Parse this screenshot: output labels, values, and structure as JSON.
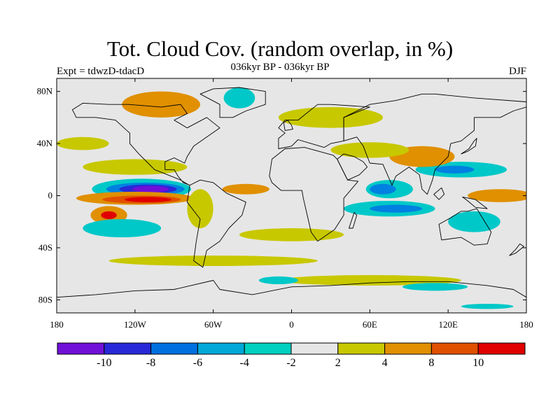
{
  "header": {
    "title": "Tot. Cloud Cov. (random overlap, in %)",
    "subtitle": "036kyr BP - 036kyr BP",
    "experiment": "Expt = tdwzD-tdacD",
    "season": "DJF"
  },
  "map": {
    "lon_range": [
      -180,
      180
    ],
    "lat_range": [
      -90,
      90
    ],
    "background_color": "#e6e6e6",
    "lat_ticks": [
      {
        "lat": 80,
        "label": "80N"
      },
      {
        "lat": 40,
        "label": "40N"
      },
      {
        "lat": 0,
        "label": "0"
      },
      {
        "lat": -40,
        "label": "40S"
      },
      {
        "lat": -80,
        "label": "80S"
      }
    ],
    "lon_ticks": [
      {
        "lon": -180,
        "label": "180"
      },
      {
        "lon": -120,
        "label": "120W"
      },
      {
        "lon": -60,
        "label": "60W"
      },
      {
        "lon": 0,
        "label": "0"
      },
      {
        "lon": 60,
        "label": "60E"
      },
      {
        "lon": 120,
        "label": "120E"
      },
      {
        "lon": 180,
        "label": "180"
      }
    ],
    "anomaly_patches": [
      {
        "lon": -115,
        "lat": 5,
        "rlon": 38,
        "rlat": 8,
        "color": "#00c8c8"
      },
      {
        "lon": -112,
        "lat": 5,
        "rlon": 30,
        "rlat": 5,
        "color": "#0080e0"
      },
      {
        "lon": -110,
        "lat": 5,
        "rlon": 22,
        "rlat": 3.5,
        "color": "#2828d8"
      },
      {
        "lon": -108,
        "lat": 5,
        "rlon": 14,
        "rlat": 2.5,
        "color": "#7010d8"
      },
      {
        "lon": -120,
        "lat": -2,
        "rlon": 45,
        "rlat": 5,
        "color": "#e09000"
      },
      {
        "lon": -115,
        "lat": -3,
        "rlon": 30,
        "rlat": 3,
        "color": "#e05000"
      },
      {
        "lon": -110,
        "lat": -3,
        "rlon": 18,
        "rlat": 2,
        "color": "#e00000"
      },
      {
        "lon": -140,
        "lat": -15,
        "rlon": 14,
        "rlat": 7,
        "color": "#e09000"
      },
      {
        "lon": -140,
        "lat": -15,
        "rlon": 6,
        "rlat": 3,
        "color": "#e00000"
      },
      {
        "lon": -130,
        "lat": -25,
        "rlon": 30,
        "rlat": 7,
        "color": "#00c8c8"
      },
      {
        "lon": -120,
        "lat": 22,
        "rlon": 40,
        "rlat": 6,
        "color": "#c8c800"
      },
      {
        "lon": -160,
        "lat": 40,
        "rlon": 20,
        "rlat": 5,
        "color": "#c8c800"
      },
      {
        "lon": -35,
        "lat": 5,
        "rlon": 18,
        "rlat": 4,
        "color": "#e09000"
      },
      {
        "lon": -70,
        "lat": -10,
        "rlon": 10,
        "rlat": 15,
        "color": "#c8c800"
      },
      {
        "lon": 75,
        "lat": 5,
        "rlon": 18,
        "rlat": 7,
        "color": "#00c8c8"
      },
      {
        "lon": 70,
        "lat": 5,
        "rlon": 10,
        "rlat": 4,
        "color": "#0080e0"
      },
      {
        "lon": 75,
        "lat": -10,
        "rlon": 35,
        "rlat": 6,
        "color": "#00c8c8"
      },
      {
        "lon": 80,
        "lat": -10,
        "rlon": 20,
        "rlat": 3,
        "color": "#0080e0"
      },
      {
        "lon": 130,
        "lat": 20,
        "rlon": 35,
        "rlat": 6,
        "color": "#00c8c8"
      },
      {
        "lon": 125,
        "lat": 20,
        "rlon": 15,
        "rlat": 3,
        "color": "#0080e0"
      },
      {
        "lon": 100,
        "lat": 30,
        "rlon": 25,
        "rlat": 8,
        "color": "#e09000"
      },
      {
        "lon": 160,
        "lat": 0,
        "rlon": 25,
        "rlat": 5,
        "color": "#e09000"
      },
      {
        "lon": 140,
        "lat": -20,
        "rlon": 20,
        "rlat": 8,
        "color": "#00c8c8"
      },
      {
        "lon": 60,
        "lat": 35,
        "rlon": 30,
        "rlat": 6,
        "color": "#c8c800"
      },
      {
        "lon": 30,
        "lat": 60,
        "rlon": 40,
        "rlat": 8,
        "color": "#c8c800"
      },
      {
        "lon": -100,
        "lat": 70,
        "rlon": 30,
        "rlat": 10,
        "color": "#e09000"
      },
      {
        "lon": -40,
        "lat": 75,
        "rlon": 12,
        "rlat": 8,
        "color": "#00c8c8"
      },
      {
        "lon": 0,
        "lat": -30,
        "rlon": 40,
        "rlat": 5,
        "color": "#c8c800"
      },
      {
        "lon": -60,
        "lat": -50,
        "rlon": 80,
        "rlat": 4,
        "color": "#c8c800"
      },
      {
        "lon": 60,
        "lat": -65,
        "rlon": 70,
        "rlat": 4,
        "color": "#c8c800"
      },
      {
        "lon": -10,
        "lat": -65,
        "rlon": 15,
        "rlat": 3,
        "color": "#00c8c8"
      },
      {
        "lon": 110,
        "lat": -70,
        "rlon": 25,
        "rlat": 3,
        "color": "#00c8c8"
      },
      {
        "lon": 150,
        "lat": -85,
        "rlon": 20,
        "rlat": 2,
        "color": "#00c8c8"
      }
    ],
    "continents": [
      {
        "name": "north-america",
        "points": [
          [
            -168,
            66
          ],
          [
            -160,
            71
          ],
          [
            -140,
            70
          ],
          [
            -125,
            70
          ],
          [
            -100,
            68
          ],
          [
            -85,
            70
          ],
          [
            -80,
            63
          ],
          [
            -90,
            58
          ],
          [
            -80,
            52
          ],
          [
            -65,
            60
          ],
          [
            -55,
            52
          ],
          [
            -65,
            45
          ],
          [
            -75,
            38
          ],
          [
            -80,
            30
          ],
          [
            -82,
            25
          ],
          [
            -90,
            29
          ],
          [
            -97,
            26
          ],
          [
            -97,
            20
          ],
          [
            -90,
            20
          ],
          [
            -87,
            15
          ],
          [
            -83,
            10
          ],
          [
            -78,
            8
          ],
          [
            -80,
            9
          ],
          [
            -85,
            12
          ],
          [
            -95,
            16
          ],
          [
            -105,
            20
          ],
          [
            -110,
            25
          ],
          [
            -117,
            32
          ],
          [
            -124,
            40
          ],
          [
            -124,
            48
          ],
          [
            -135,
            58
          ],
          [
            -150,
            60
          ],
          [
            -165,
            60
          ]
        ]
      },
      {
        "name": "greenland",
        "points": [
          [
            -55,
            60
          ],
          [
            -45,
            60
          ],
          [
            -35,
            65
          ],
          [
            -20,
            70
          ],
          [
            -20,
            80
          ],
          [
            -40,
            83
          ],
          [
            -60,
            82
          ],
          [
            -70,
            78
          ],
          [
            -55,
            70
          ]
        ]
      },
      {
        "name": "south-america",
        "points": [
          [
            -78,
            8
          ],
          [
            -70,
            12
          ],
          [
            -60,
            10
          ],
          [
            -50,
            2
          ],
          [
            -35,
            -5
          ],
          [
            -38,
            -15
          ],
          [
            -48,
            -25
          ],
          [
            -55,
            -35
          ],
          [
            -65,
            -42
          ],
          [
            -68,
            -55
          ],
          [
            -75,
            -50
          ],
          [
            -73,
            -35
          ],
          [
            -70,
            -18
          ],
          [
            -80,
            -5
          ]
        ]
      },
      {
        "name": "europe",
        "points": [
          [
            -10,
            36
          ],
          [
            0,
            38
          ],
          [
            5,
            43
          ],
          [
            15,
            40
          ],
          [
            25,
            37
          ],
          [
            30,
            40
          ],
          [
            40,
            42
          ],
          [
            40,
            60
          ],
          [
            60,
            68
          ],
          [
            30,
            70
          ],
          [
            20,
            70
          ],
          [
            10,
            62
          ],
          [
            5,
            58
          ],
          [
            -5,
            58
          ],
          [
            -10,
            52
          ],
          [
            -5,
            48
          ],
          [
            -10,
            44
          ]
        ]
      },
      {
        "name": "africa",
        "points": [
          [
            -17,
            15
          ],
          [
            -15,
            28
          ],
          [
            -5,
            36
          ],
          [
            10,
            37
          ],
          [
            32,
            31
          ],
          [
            35,
            28
          ],
          [
            43,
            12
          ],
          [
            51,
            11
          ],
          [
            40,
            -2
          ],
          [
            40,
            -15
          ],
          [
            33,
            -26
          ],
          [
            20,
            -35
          ],
          [
            15,
            -28
          ],
          [
            12,
            -15
          ],
          [
            9,
            -2
          ],
          [
            8,
            4
          ],
          [
            -8,
            4
          ],
          [
            -15,
            10
          ]
        ]
      },
      {
        "name": "asia",
        "points": [
          [
            40,
            42
          ],
          [
            50,
            45
          ],
          [
            55,
            38
          ],
          [
            60,
            25
          ],
          [
            70,
            24
          ],
          [
            77,
            8
          ],
          [
            80,
            15
          ],
          [
            90,
            22
          ],
          [
            98,
            16
          ],
          [
            100,
            5
          ],
          [
            104,
            1
          ],
          [
            108,
            12
          ],
          [
            110,
            20
          ],
          [
            120,
            30
          ],
          [
            122,
            40
          ],
          [
            130,
            42
          ],
          [
            140,
            50
          ],
          [
            140,
            60
          ],
          [
            160,
            60
          ],
          [
            170,
            65
          ],
          [
            180,
            68
          ],
          [
            180,
            72
          ],
          [
            140,
            75
          ],
          [
            110,
            78
          ],
          [
            100,
            78
          ],
          [
            80,
            73
          ],
          [
            60,
            70
          ],
          [
            40,
            60
          ]
        ]
      },
      {
        "name": "arabia",
        "points": [
          [
            35,
            28
          ],
          [
            43,
            12
          ],
          [
            52,
            16
          ],
          [
            58,
            22
          ],
          [
            55,
            26
          ],
          [
            48,
            30
          ],
          [
            40,
            32
          ]
        ]
      },
      {
        "name": "australia",
        "points": [
          [
            113,
            -22
          ],
          [
            115,
            -34
          ],
          [
            130,
            -32
          ],
          [
            140,
            -38
          ],
          [
            150,
            -37
          ],
          [
            153,
            -28
          ],
          [
            145,
            -15
          ],
          [
            142,
            -10
          ],
          [
            135,
            -12
          ],
          [
            130,
            -12
          ],
          [
            122,
            -17
          ]
        ]
      },
      {
        "name": "antarctica",
        "points": [
          [
            -180,
            -78
          ],
          [
            -150,
            -76
          ],
          [
            -120,
            -73
          ],
          [
            -90,
            -72
          ],
          [
            -60,
            -65
          ],
          [
            -55,
            -72
          ],
          [
            -30,
            -76
          ],
          [
            0,
            -70
          ],
          [
            30,
            -69
          ],
          [
            60,
            -67
          ],
          [
            90,
            -66
          ],
          [
            120,
            -66
          ],
          [
            150,
            -69
          ],
          [
            170,
            -72
          ],
          [
            180,
            -78
          ],
          [
            180,
            -90
          ],
          [
            -180,
            -90
          ]
        ]
      },
      {
        "name": "japan",
        "points": [
          [
            130,
            32
          ],
          [
            135,
            34
          ],
          [
            141,
            38
          ],
          [
            142,
            44
          ],
          [
            140,
            42
          ],
          [
            136,
            36
          ]
        ]
      },
      {
        "name": "uk",
        "points": [
          [
            -5,
            50
          ],
          [
            1,
            51
          ],
          [
            0,
            54
          ],
          [
            -3,
            58
          ],
          [
            -6,
            56
          ]
        ]
      },
      {
        "name": "madagascar",
        "points": [
          [
            44,
            -25
          ],
          [
            47,
            -25
          ],
          [
            50,
            -15
          ],
          [
            48,
            -13
          ]
        ]
      },
      {
        "name": "new-zealand",
        "points": [
          [
            167,
            -46
          ],
          [
            172,
            -41
          ],
          [
            175,
            -37
          ],
          [
            178,
            -39
          ],
          [
            172,
            -44
          ]
        ]
      },
      {
        "name": "borneo",
        "points": [
          [
            109,
            1
          ],
          [
            113,
            -3
          ],
          [
            117,
            1
          ],
          [
            115,
            6
          ]
        ]
      },
      {
        "name": "new-guinea",
        "points": [
          [
            131,
            -1
          ],
          [
            141,
            -3
          ],
          [
            150,
            -10
          ],
          [
            141,
            -9
          ],
          [
            135,
            -4
          ]
        ]
      }
    ]
  },
  "colorbar": {
    "colors": [
      "#7010d8",
      "#2828d8",
      "#0070e0",
      "#00a8d8",
      "#00d0c0",
      "#e6e6e6",
      "#c8c800",
      "#e09000",
      "#e05000",
      "#e00000"
    ],
    "labels": [
      "-10",
      "-8",
      "-6",
      "-4",
      "-2",
      "2",
      "4",
      "8",
      "10"
    ]
  }
}
